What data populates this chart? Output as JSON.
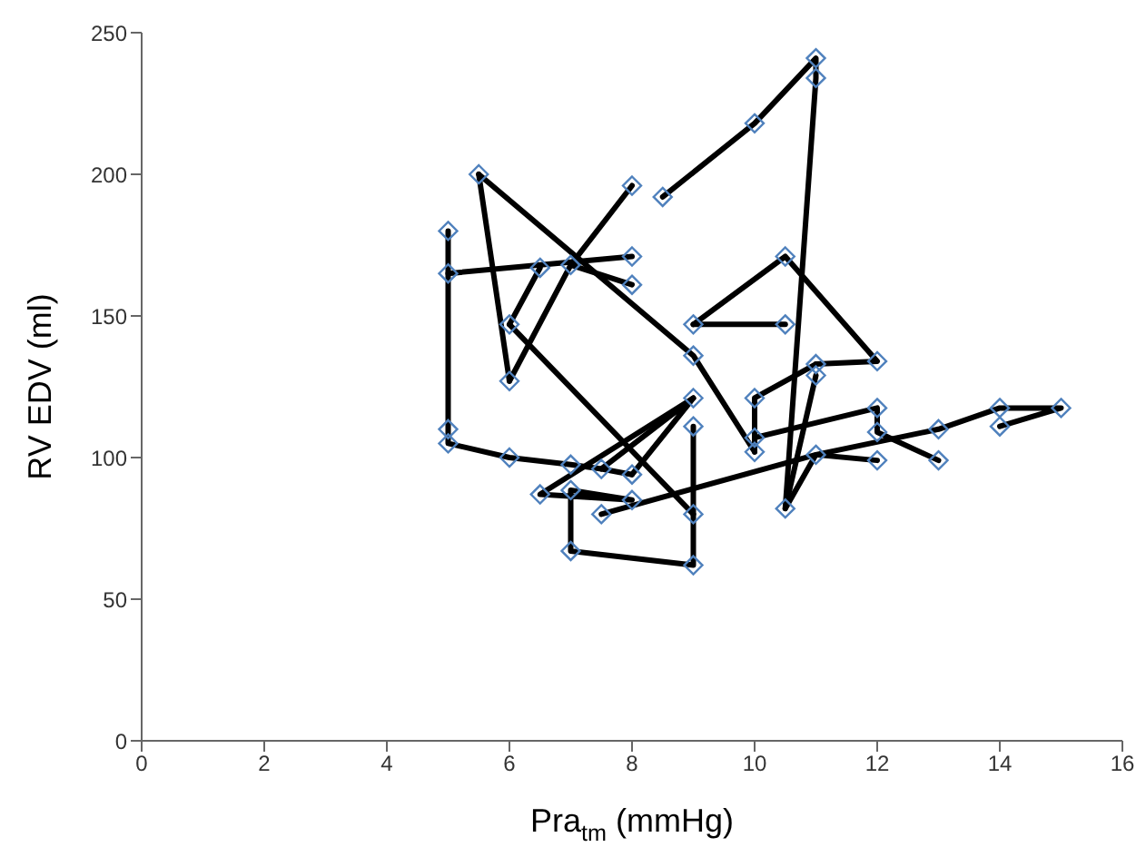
{
  "chart_data": {
    "type": "line",
    "xlabel": "Pra$_{tm}$ (mmHg)",
    "ylabel": "RV EDV (ml)",
    "xlim": [
      0,
      16
    ],
    "xticks": [
      0,
      2,
      4,
      6,
      8,
      10,
      12,
      14,
      16
    ],
    "ylim": [
      0,
      250
    ],
    "yticks": [
      0,
      50,
      100,
      150,
      200,
      250
    ],
    "grid": false,
    "line_style": "solid",
    "series": [
      {
        "type": "line",
        "color": "#000000",
        "marker": "none",
        "x": [
          5,
          5,
          5,
          5,
          6,
          7,
          7.5,
          8
        ],
        "values": [
          180,
          165,
          110,
          105,
          100,
          97.5,
          96,
          94
        ]
      },
      {
        "type": "line",
        "color": "#000000",
        "marker": "none",
        "x": [
          5,
          8
        ],
        "values": [
          165,
          171
        ]
      },
      {
        "type": "line",
        "color": "#000000",
        "marker": "none",
        "x": [
          5.5,
          6
        ],
        "values": [
          200,
          127
        ]
      },
      {
        "type": "line",
        "color": "#000000",
        "marker": "none",
        "x": [
          5.5,
          9,
          10
        ],
        "values": [
          200,
          136,
          102
        ]
      },
      {
        "type": "line",
        "color": "#000000",
        "marker": "none",
        "x": [
          6,
          6.5
        ],
        "values": [
          147,
          167
        ]
      },
      {
        "type": "line",
        "color": "#000000",
        "marker": "none",
        "x": [
          8,
          7,
          6
        ],
        "values": [
          196,
          168,
          127
        ]
      },
      {
        "type": "line",
        "color": "#000000",
        "marker": "none",
        "x": [
          7,
          8
        ],
        "values": [
          168,
          161
        ]
      },
      {
        "type": "line",
        "color": "#000000",
        "marker": "none",
        "x": [
          8.5,
          10,
          11,
          11,
          10.5,
          11,
          12
        ],
        "values": [
          192,
          218,
          241,
          234,
          82,
          101,
          99
        ]
      },
      {
        "type": "line",
        "color": "#000000",
        "marker": "none",
        "x": [
          9,
          10.5
        ],
        "values": [
          147,
          147
        ]
      },
      {
        "type": "line",
        "color": "#000000",
        "marker": "none",
        "x": [
          9,
          10.5,
          12,
          11
        ],
        "values": [
          147,
          171,
          134,
          133
        ]
      },
      {
        "type": "line",
        "color": "#000000",
        "marker": "none",
        "x": [
          11,
          10.5
        ],
        "values": [
          129,
          82
        ]
      },
      {
        "type": "line",
        "color": "#000000",
        "marker": "none",
        "x": [
          11,
          10,
          10,
          10
        ],
        "values": [
          133,
          121,
          107,
          102
        ]
      },
      {
        "type": "line",
        "color": "#000000",
        "marker": "none",
        "x": [
          7.5,
          9,
          8
        ],
        "values": [
          96,
          121,
          94
        ]
      },
      {
        "type": "line",
        "color": "#000000",
        "marker": "none",
        "x": [
          9,
          9,
          9,
          7,
          7,
          8,
          6.5,
          9
        ],
        "values": [
          111,
          80,
          62,
          67,
          88.5,
          85,
          87,
          121
        ]
      },
      {
        "type": "line",
        "color": "#000000",
        "marker": "none",
        "x": [
          7.5,
          11,
          13,
          14,
          15,
          14
        ],
        "values": [
          80,
          101,
          110,
          117.5,
          117.5,
          111
        ]
      },
      {
        "type": "line",
        "color": "#000000",
        "marker": "none",
        "x": [
          10,
          12,
          12,
          13
        ],
        "values": [
          107,
          117.5,
          109,
          99
        ]
      },
      {
        "type": "line",
        "color": "#000000",
        "marker": "none",
        "x": [
          6,
          9
        ],
        "values": [
          147,
          80
        ]
      },
      {
        "type": "scatter",
        "color": "#4f81bd",
        "marker": "diamond",
        "x": [
          5,
          5,
          5,
          5,
          5.5,
          6,
          6,
          6,
          6.5,
          7,
          8,
          8,
          8,
          8.5,
          10,
          11,
          11,
          10.5,
          9,
          10.5,
          12,
          11,
          11,
          9,
          9,
          9,
          10,
          10,
          10,
          7,
          7.5,
          8,
          6.5,
          7,
          8,
          7.5,
          9,
          7,
          9,
          12,
          12,
          12,
          11,
          13,
          13,
          14,
          14,
          15,
          10.5
        ],
        "values": [
          180,
          165,
          110,
          105,
          200,
          147,
          127,
          100,
          167,
          168,
          196,
          171,
          161,
          192,
          218,
          241,
          234,
          171,
          147,
          147,
          134,
          133,
          129,
          136,
          121,
          111,
          121,
          107,
          102,
          97.5,
          96,
          94,
          87,
          88.5,
          85,
          80,
          80,
          67,
          62,
          117.5,
          109,
          99,
          101,
          110,
          99,
          117.5,
          111,
          117.5,
          82
        ]
      }
    ]
  }
}
